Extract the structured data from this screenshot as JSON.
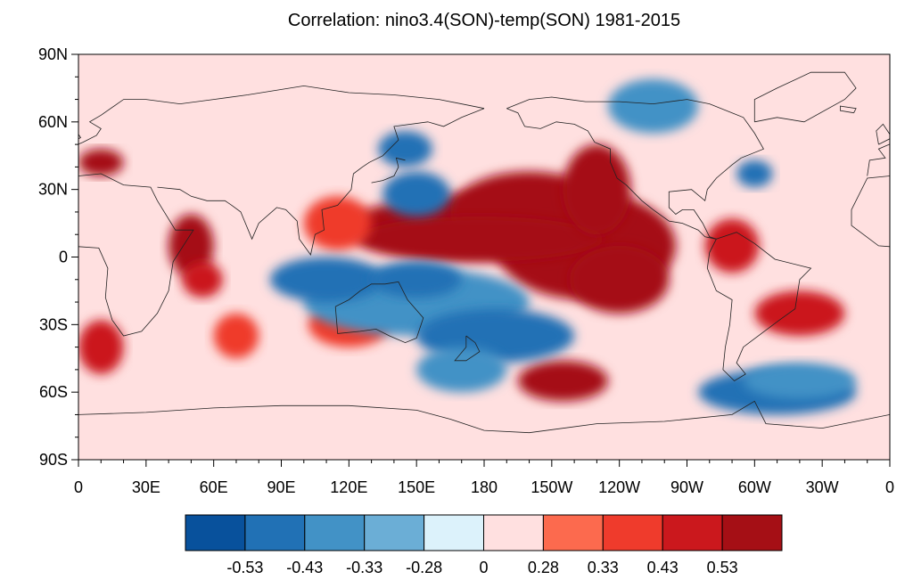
{
  "title": "Correlation: nino3.4(SON)-temp(SON) 1981-2015",
  "map": {
    "lon_range": [
      0,
      360
    ],
    "lat_range": [
      -90,
      90
    ],
    "lon_ticks": [
      {
        "lon": 0,
        "label": "0"
      },
      {
        "lon": 30,
        "label": "30E"
      },
      {
        "lon": 60,
        "label": "60E"
      },
      {
        "lon": 90,
        "label": "90E"
      },
      {
        "lon": 120,
        "label": "120E"
      },
      {
        "lon": 150,
        "label": "150E"
      },
      {
        "lon": 180,
        "label": "180"
      },
      {
        "lon": 210,
        "label": "150W"
      },
      {
        "lon": 240,
        "label": "120W"
      },
      {
        "lon": 270,
        "label": "90W"
      },
      {
        "lon": 300,
        "label": "60W"
      },
      {
        "lon": 330,
        "label": "30W"
      },
      {
        "lon": 360,
        "label": "0"
      }
    ],
    "lat_ticks": [
      {
        "lat": 90,
        "label": "90N"
      },
      {
        "lat": 60,
        "label": "60N"
      },
      {
        "lat": 30,
        "label": "30N"
      },
      {
        "lat": 0,
        "label": "0"
      },
      {
        "lat": -30,
        "label": "30S"
      },
      {
        "lat": -60,
        "label": "60S"
      },
      {
        "lat": -90,
        "label": "90S"
      }
    ],
    "regions": [
      {
        "level": 9,
        "lon": 180,
        "lat": 14,
        "rlon": 60,
        "rlat": 14
      },
      {
        "level": 9,
        "lon": 225,
        "lat": 5,
        "rlon": 40,
        "rlat": 24
      },
      {
        "level": 9,
        "lon": 200,
        "lat": 20,
        "rlon": 35,
        "rlat": 18
      },
      {
        "level": 9,
        "lon": 178,
        "lat": 8,
        "rlon": 55,
        "rlat": 10
      },
      {
        "level": 9,
        "lon": 230,
        "lat": 30,
        "rlon": 15,
        "rlat": 20
      },
      {
        "level": 9,
        "lon": 240,
        "lat": -10,
        "rlon": 22,
        "rlat": 15
      },
      {
        "level": 9,
        "lon": 215,
        "lat": -55,
        "rlon": 20,
        "rlat": 9
      },
      {
        "level": 9,
        "lon": 50,
        "lat": 5,
        "rlon": 10,
        "rlat": 14
      },
      {
        "level": 8,
        "lon": 55,
        "lat": -10,
        "rlon": 9,
        "rlat": 8
      },
      {
        "level": 9,
        "lon": 10,
        "lat": 42,
        "rlon": 10,
        "rlat": 6
      },
      {
        "level": 7,
        "lon": 70,
        "lat": -35,
        "rlon": 10,
        "rlat": 10
      },
      {
        "level": 8,
        "lon": 290,
        "lat": 5,
        "rlon": 12,
        "rlat": 12
      },
      {
        "level": 8,
        "lon": 320,
        "lat": -25,
        "rlon": 20,
        "rlat": 10
      },
      {
        "level": 8,
        "lon": 10,
        "lat": -40,
        "rlon": 10,
        "rlat": 12
      },
      {
        "level": 7,
        "lon": 115,
        "lat": 15,
        "rlon": 15,
        "rlat": 12
      },
      {
        "level": 7,
        "lon": 120,
        "lat": -30,
        "rlon": 18,
        "rlat": 10
      },
      {
        "level": 1,
        "lon": 150,
        "lat": 28,
        "rlon": 15,
        "rlat": 10
      },
      {
        "level": 2,
        "lon": 150,
        "lat": -20,
        "rlon": 50,
        "rlat": 15
      },
      {
        "level": 1,
        "lon": 185,
        "lat": -35,
        "rlon": 35,
        "rlat": 12
      },
      {
        "level": 1,
        "lon": 110,
        "lat": -10,
        "rlon": 25,
        "rlat": 10
      },
      {
        "level": 1,
        "lon": 150,
        "lat": -10,
        "rlon": 20,
        "rlat": 8
      },
      {
        "level": 2,
        "lon": 170,
        "lat": -50,
        "rlon": 20,
        "rlat": 10
      },
      {
        "level": 1,
        "lon": 310,
        "lat": -60,
        "rlon": 35,
        "rlat": 10
      },
      {
        "level": 2,
        "lon": 320,
        "lat": -55,
        "rlon": 25,
        "rlat": 8
      },
      {
        "level": 2,
        "lon": 255,
        "lat": 67,
        "rlon": 20,
        "rlat": 12
      },
      {
        "level": 1,
        "lon": 300,
        "lat": 37,
        "rlon": 8,
        "rlat": 6
      },
      {
        "level": 1,
        "lon": 145,
        "lat": 48,
        "rlon": 12,
        "rlat": 8
      }
    ]
  },
  "colorbar": {
    "colors": [
      "#08519c",
      "#2171b5",
      "#4292c6",
      "#6baed6",
      "#dcf2fb",
      "#ffe0e0",
      "#fc6a4e",
      "#ef3b2c",
      "#cb181d",
      "#a50f15"
    ],
    "labels": [
      "-0.53",
      "-0.43",
      "-0.33",
      "-0.28",
      "0",
      "0.28",
      "0.33",
      "0.43",
      "0.53"
    ]
  }
}
